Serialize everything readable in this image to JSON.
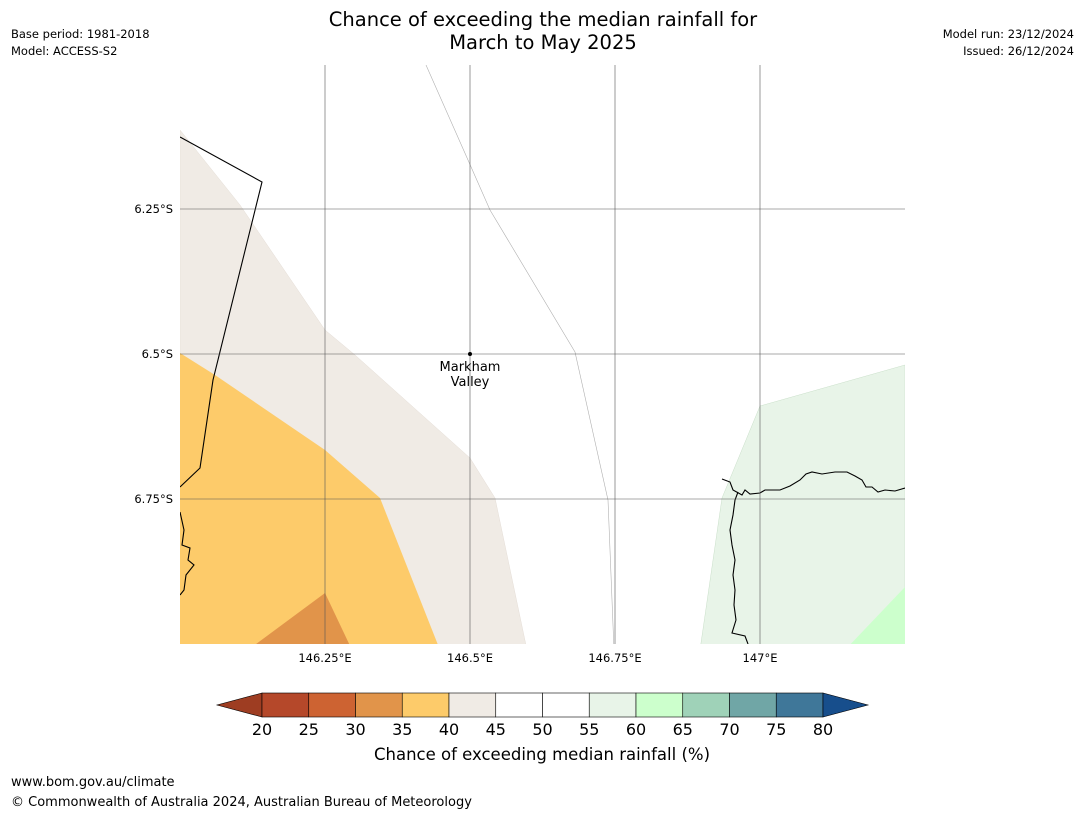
{
  "title_line1": "Chance of exceeding the median rainfall for",
  "title_line2": "March to May 2025",
  "meta_left": [
    "Base period: 1981-2018",
    "Model: ACCESS-S2"
  ],
  "meta_right": [
    "Model run: 23/12/2024",
    "Issued: 26/12/2024"
  ],
  "lat_labels": [
    "6.25°S",
    "6.5°S",
    "6.75°S"
  ],
  "lon_labels": [
    "146.25°E",
    "146.5°E",
    "146.75°E",
    "147°E"
  ],
  "place": {
    "line1": "Markham",
    "line2": "Valley"
  },
  "colorbar": {
    "ticks": [
      "20",
      "25",
      "30",
      "35",
      "40",
      "45",
      "50",
      "55",
      "60",
      "65",
      "70",
      "75",
      "80"
    ],
    "colors": [
      "#9e3d22",
      "#b5482a",
      "#cd6332",
      "#e1944a",
      "#fdcb6a",
      "#f0ebe5",
      "#ffffff",
      "#ffffff",
      "#e8f4e8",
      "#ccffcc",
      "#9fd2b8",
      "#70a6a6",
      "#3f7799",
      "#174e8c"
    ],
    "label": "Chance of exceeding median rainfall (%)"
  },
  "footer": {
    "url": "www.bom.gov.au/climate",
    "copyright": "© Commonwealth of Australia 2024, Australian Bureau of Meteorology"
  }
}
